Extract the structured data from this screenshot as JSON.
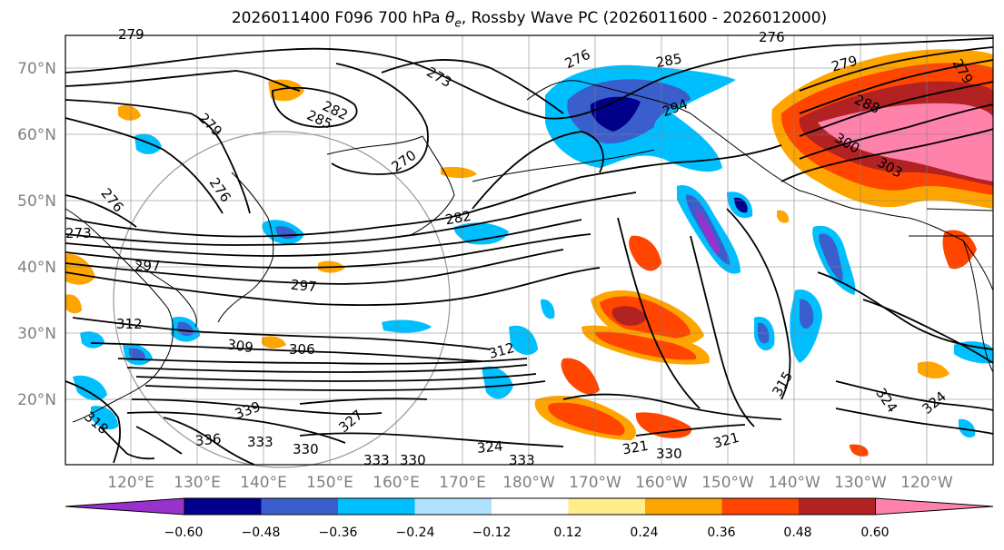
{
  "title": {
    "prefix": "2026011400 F096 700 hPa ",
    "theta": "θ",
    "theta_sub": "e",
    "suffix": ", Rossby Wave PC (2026011600 - 2026012000)"
  },
  "lat_labels": [
    "70°N",
    "60°N",
    "50°N",
    "40°N",
    "30°N",
    "20°N"
  ],
  "lon_labels": [
    "120°E",
    "130°E",
    "140°E",
    "150°E",
    "160°E",
    "170°E",
    "180°W",
    "170°W",
    "160°W",
    "150°W",
    "140°W",
    "130°W",
    "120°W"
  ],
  "contour_labels": [
    "279",
    "273",
    "276",
    "285",
    "294",
    "276",
    "279",
    "288",
    "282",
    "285",
    "279",
    "276",
    "270",
    "300",
    "303",
    "279",
    "276",
    "273",
    "282",
    "297",
    "297",
    "312",
    "309",
    "306",
    "312",
    "339",
    "327",
    "318",
    "336",
    "333",
    "330",
    "333",
    "330",
    "324",
    "333",
    "321",
    "330",
    "321",
    "315",
    "324",
    "324"
  ],
  "colorbar": {
    "colors": [
      "#9932cc",
      "#00008b",
      "#3a5fcd",
      "#00bfff",
      "#b0e2ff",
      "#ffffff",
      "#ffec8b",
      "#ffa500",
      "#ff4500",
      "#b22222",
      "#ff82ab"
    ],
    "tick_labels": [
      "−0.60",
      "−0.48",
      "−0.36",
      "−0.24",
      "−0.12",
      "0.12",
      "0.24",
      "0.36",
      "0.48",
      "0.60"
    ]
  },
  "colors": {
    "frame": "#000000",
    "grid": "#808080",
    "contour": "#000000",
    "tick_text": "#808080"
  }
}
